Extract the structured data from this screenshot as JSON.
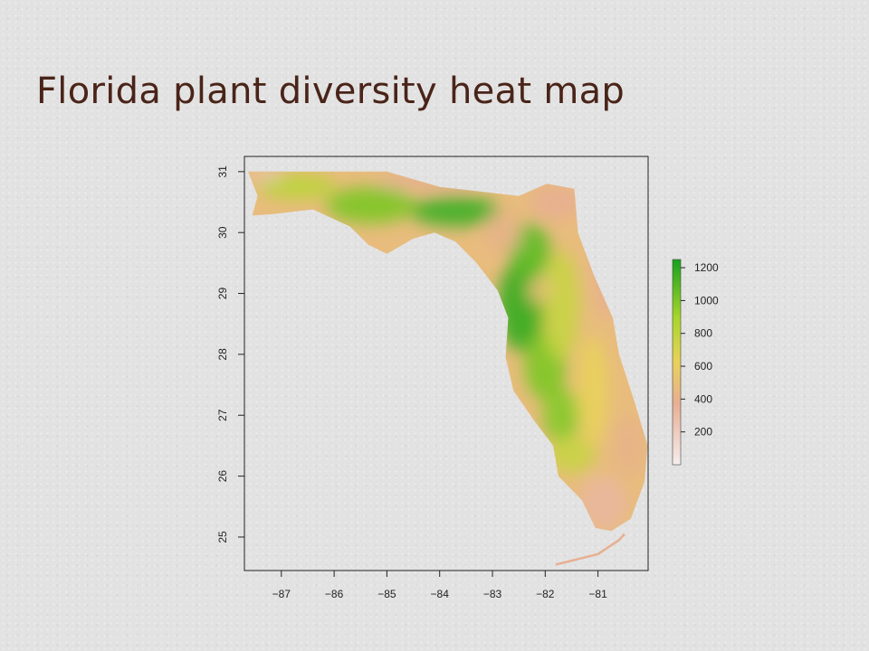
{
  "slide": {
    "title": "Florida plant diversity heat map"
  },
  "colors": {
    "title": "#4a2419",
    "background": "#e2e2e2",
    "scale_low": "#f5eeee",
    "scale_mid_low": "#e7ae92",
    "scale_mid": "#e9d25a",
    "scale_mid_high": "#a6d62a",
    "scale_high": "#16a11d"
  },
  "chart_data": {
    "type": "heatmap",
    "title": "",
    "xlabel": "",
    "ylabel": "",
    "xlim": [
      -87.7,
      -80.05
    ],
    "ylim": [
      24.45,
      31.25
    ],
    "x_ticks": [
      -87,
      -86,
      -85,
      -84,
      -83,
      -82,
      -81
    ],
    "x_tick_labels": [
      "−87",
      "−86",
      "−85",
      "−84",
      "−83",
      "−82",
      "−81"
    ],
    "y_ticks": [
      25,
      26,
      27,
      28,
      29,
      30,
      31
    ],
    "y_tick_labels": [
      "25",
      "26",
      "27",
      "28",
      "29",
      "30",
      "31"
    ],
    "legend": {
      "placement": "right",
      "range": [
        0,
        1250
      ],
      "ticks": [
        200,
        400,
        600,
        800,
        1000,
        1200
      ],
      "tick_labels": [
        "200",
        "400",
        "600",
        "800",
        "1000",
        "1200"
      ]
    },
    "region_outline": [
      [
        -87.63,
        31.0
      ],
      [
        -85.0,
        31.0
      ],
      [
        -85.0,
        31.0
      ],
      [
        -84.0,
        30.75
      ],
      [
        -82.5,
        30.6
      ],
      [
        -81.97,
        30.8
      ],
      [
        -81.45,
        30.72
      ],
      [
        -81.38,
        30.0
      ],
      [
        -81.08,
        29.3
      ],
      [
        -80.72,
        28.6
      ],
      [
        -80.6,
        28.0
      ],
      [
        -80.3,
        27.2
      ],
      [
        -80.06,
        26.5
      ],
      [
        -80.12,
        25.9
      ],
      [
        -80.38,
        25.3
      ],
      [
        -80.75,
        25.1
      ],
      [
        -81.05,
        25.15
      ],
      [
        -81.3,
        25.6
      ],
      [
        -81.75,
        26.0
      ],
      [
        -81.85,
        26.5
      ],
      [
        -82.2,
        26.9
      ],
      [
        -82.6,
        27.4
      ],
      [
        -82.75,
        27.95
      ],
      [
        -82.7,
        28.6
      ],
      [
        -82.9,
        29.05
      ],
      [
        -83.3,
        29.5
      ],
      [
        -83.7,
        29.85
      ],
      [
        -84.1,
        30.0
      ],
      [
        -84.5,
        29.9
      ],
      [
        -85.0,
        29.65
      ],
      [
        -85.35,
        29.8
      ],
      [
        -85.7,
        30.1
      ],
      [
        -86.4,
        30.38
      ],
      [
        -87.2,
        30.3
      ],
      [
        -87.55,
        30.28
      ],
      [
        -87.45,
        30.6
      ],
      [
        -87.63,
        31.0
      ]
    ],
    "keys_outline": [
      [
        -81.8,
        24.55
      ],
      [
        -81.55,
        24.6
      ],
      [
        -81.0,
        24.72
      ],
      [
        -80.6,
        24.95
      ],
      [
        -80.5,
        25.05
      ]
    ],
    "diversity_zones": [
      {
        "center": [
          -82.45,
          28.8
        ],
        "radius": [
          0.45,
          0.75
        ],
        "value": 1180
      },
      {
        "center": [
          -82.3,
          29.7
        ],
        "radius": [
          0.4,
          0.45
        ],
        "value": 1080
      },
      {
        "center": [
          -83.7,
          30.35
        ],
        "radius": [
          0.85,
          0.25
        ],
        "value": 1150
      },
      {
        "center": [
          -85.3,
          30.45
        ],
        "radius": [
          0.85,
          0.3
        ],
        "value": 1000
      },
      {
        "center": [
          -82.0,
          27.8
        ],
        "radius": [
          0.4,
          0.55
        ],
        "value": 1000
      },
      {
        "center": [
          -81.7,
          27.0
        ],
        "radius": [
          0.35,
          0.45
        ],
        "value": 980
      },
      {
        "center": [
          -86.7,
          30.75
        ],
        "radius": [
          0.75,
          0.2
        ],
        "value": 820
      },
      {
        "center": [
          -81.7,
          28.8
        ],
        "radius": [
          0.35,
          0.9
        ],
        "value": 760
      },
      {
        "center": [
          -81.5,
          26.35
        ],
        "radius": [
          0.45,
          0.3
        ],
        "value": 760
      },
      {
        "center": [
          -81.1,
          27.4
        ],
        "radius": [
          0.3,
          0.9
        ],
        "value": 620
      },
      {
        "center": [
          -82.8,
          30.0
        ],
        "radius": [
          0.35,
          0.35
        ],
        "value": 420
      },
      {
        "center": [
          -82.1,
          29.05
        ],
        "radius": [
          0.22,
          0.22
        ],
        "value": 500
      },
      {
        "center": [
          -80.9,
          25.55
        ],
        "radius": [
          0.45,
          0.45
        ],
        "value": 320
      },
      {
        "center": [
          -80.4,
          26.5
        ],
        "radius": [
          0.3,
          0.5
        ],
        "value": 420
      },
      {
        "center": [
          -81.8,
          30.5
        ],
        "radius": [
          0.5,
          0.3
        ],
        "value": 380
      },
      {
        "center": [
          -84.2,
          30.85
        ],
        "radius": [
          1.0,
          0.15
        ],
        "value": 380
      },
      {
        "center": [
          -80.8,
          29.5
        ],
        "radius": [
          0.3,
          0.9
        ],
        "value": 380
      },
      {
        "center": [
          -87.3,
          30.95
        ],
        "radius": [
          0.3,
          0.1
        ],
        "value": 250
      }
    ]
  }
}
